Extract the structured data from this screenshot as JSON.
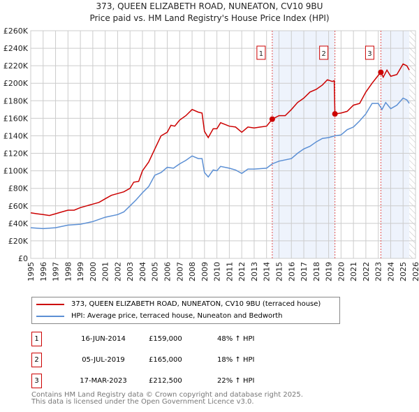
{
  "chart_data": {
    "type": "line",
    "title": "373, QUEEN ELIZABETH ROAD, NUNEATON, CV10 9BU",
    "subtitle": "Price paid vs. HM Land Registry's House Price Index (HPI)",
    "xlim": [
      1995,
      2026
    ],
    "ylim": [
      0,
      260000
    ],
    "yticks": [
      "£0",
      "£20K",
      "£40K",
      "£60K",
      "£80K",
      "£100K",
      "£120K",
      "£140K",
      "£160K",
      "£180K",
      "£200K",
      "£220K",
      "£240K",
      "£260K"
    ],
    "xticks": [
      "1995",
      "1996",
      "1997",
      "1998",
      "1999",
      "2000",
      "2001",
      "2002",
      "2003",
      "2004",
      "2005",
      "2006",
      "2007",
      "2008",
      "2009",
      "2010",
      "2011",
      "2012",
      "2013",
      "2014",
      "2015",
      "2016",
      "2017",
      "2018",
      "2019",
      "2020",
      "2021",
      "2022",
      "2023",
      "2024",
      "2025",
      "2026"
    ],
    "grid": true,
    "series": [
      {
        "name": "373, QUEEN ELIZABETH ROAD, NUNEATON, CV10 9BU (terraced house)",
        "color": "#cc0000",
        "x": [
          1995,
          1995.5,
          1996,
          1996.5,
          1997,
          1997.5,
          1998,
          1998.5,
          1999,
          1999.5,
          2000,
          2000.5,
          2001,
          2001.5,
          2002,
          2002.5,
          2003,
          2003.3,
          2003.7,
          2004,
          2004.5,
          2005,
          2005.5,
          2006,
          2006.3,
          2006.6,
          2007,
          2007.5,
          2008,
          2008.5,
          2008.8,
          2009,
          2009.3,
          2009.7,
          2010,
          2010.3,
          2011,
          2011.5,
          2012,
          2012.5,
          2013,
          2013.5,
          2014,
          2014.46,
          2015,
          2015.5,
          2016,
          2016.5,
          2017,
          2017.5,
          2018,
          2018.5,
          2018.9,
          2019.3,
          2019.45,
          2019.51,
          2020,
          2020.5,
          2021,
          2021.5,
          2022,
          2022.5,
          2023,
          2023.21,
          2023.4,
          2023.7,
          2024,
          2024.5,
          2025,
          2025.3,
          2025.5
        ],
        "y": [
          52000,
          51000,
          50000,
          49000,
          51000,
          53000,
          55000,
          55000,
          58000,
          60000,
          62000,
          64000,
          68000,
          72000,
          74000,
          76000,
          80000,
          87000,
          88000,
          100000,
          110000,
          125000,
          140000,
          144000,
          152000,
          151000,
          158000,
          163000,
          170000,
          167000,
          166000,
          145000,
          138000,
          148000,
          148000,
          155000,
          151000,
          150000,
          144000,
          150000,
          149000,
          150000,
          151000,
          159000,
          163000,
          163000,
          170000,
          178000,
          183000,
          190000,
          193000,
          198000,
          204000,
          202000,
          203000,
          165000,
          166000,
          168000,
          175000,
          177000,
          190000,
          200000,
          209000,
          212500,
          207000,
          215000,
          208000,
          210000,
          222000,
          220000,
          215000
        ]
      },
      {
        "name": "HPI: Average price, terraced house, Nuneaton and Bedworth",
        "color": "#5b8fd4",
        "x": [
          1995,
          1996,
          1997,
          1998,
          1999,
          2000,
          2001,
          2002,
          2002.5,
          2003,
          2003.5,
          2004,
          2004.5,
          2005,
          2005.5,
          2006,
          2006.5,
          2007,
          2007.5,
          2008,
          2008.5,
          2008.8,
          2009,
          2009.3,
          2009.7,
          2010,
          2010.3,
          2011,
          2011.5,
          2012,
          2012.5,
          2013,
          2014,
          2014.46,
          2015,
          2016,
          2016.5,
          2017,
          2017.5,
          2018,
          2018.5,
          2019,
          2019.5,
          2020,
          2020.5,
          2021,
          2021.5,
          2022,
          2022.5,
          2023,
          2023.3,
          2023.6,
          2024,
          2024.5,
          2025,
          2025.3,
          2025.5
        ],
        "y": [
          35000,
          34000,
          35000,
          38000,
          39000,
          42000,
          47000,
          50000,
          53000,
          60000,
          67000,
          75000,
          82000,
          95000,
          98000,
          104000,
          103000,
          108000,
          112000,
          117000,
          114000,
          114000,
          98000,
          93000,
          101000,
          100000,
          105000,
          103000,
          101000,
          97000,
          102000,
          102000,
          103000,
          108000,
          111000,
          114000,
          120000,
          125000,
          128000,
          133000,
          137000,
          138000,
          140000,
          141000,
          147000,
          150000,
          157000,
          165000,
          177000,
          177000,
          170000,
          178000,
          171000,
          175000,
          183000,
          181000,
          177000
        ]
      }
    ],
    "sales": [
      {
        "label": "1",
        "date": "16-JUN-2014",
        "x": 2014.46,
        "price": "£159,000",
        "value": 159000,
        "hpi": "48% ↑ HPI"
      },
      {
        "label": "2",
        "date": "05-JUL-2019",
        "x": 2019.51,
        "price": "£165,000",
        "value": 165000,
        "hpi": "18% ↑ HPI"
      },
      {
        "label": "3",
        "date": "17-MAR-2023",
        "x": 2023.21,
        "price": "£212,500",
        "value": 212500,
        "hpi": "22% ↑ HPI"
      }
    ]
  },
  "footer": {
    "line1": "Contains HM Land Registry data © Crown copyright and database right 2025.",
    "line2": "This data is licensed under the Open Government Licence v3.0."
  }
}
